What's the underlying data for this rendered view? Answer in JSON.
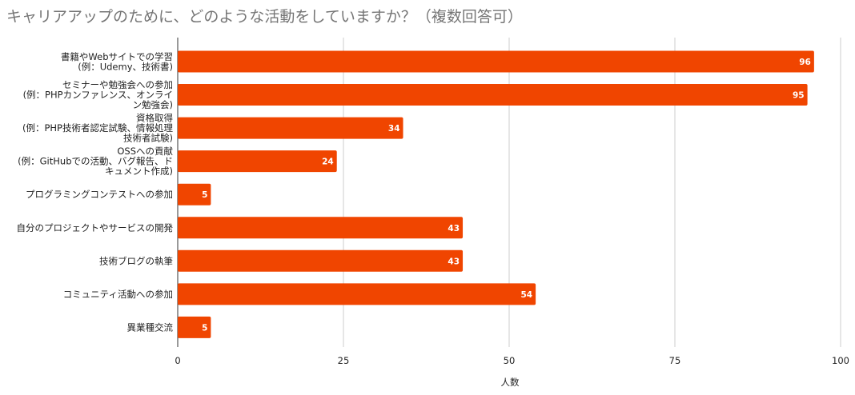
{
  "chart_data": {
    "type": "bar",
    "orientation": "horizontal",
    "title": "キャリアアップのために、どのような活動をしていますか？（複数回答可）",
    "xlabel": "人数",
    "ylabel": "",
    "xlim": [
      0,
      100
    ],
    "ticks": [
      "0",
      "25",
      "50",
      "75",
      "100"
    ],
    "tick_values": [
      0,
      25,
      50,
      75,
      100
    ],
    "grid": true,
    "bar_color": "#f04500",
    "categories": [
      [
        "書籍やWebサイトでの学習",
        "(例：Udemy、技術書)"
      ],
      [
        "セミナーや勉強会への参加",
        "(例：PHPカンファレンス、オンライ",
        "ン勉強会)"
      ],
      [
        "資格取得",
        "(例：PHP技術者認定試験、情報処理",
        "技術者試験)"
      ],
      [
        "OSSへの貢献",
        "(例：GitHubでの活動、バグ報告、ド",
        "キュメント作成)"
      ],
      [
        "プログラミングコンテストへの参加"
      ],
      [
        "自分のプロジェクトやサービスの開発"
      ],
      [
        "技術ブログの執筆"
      ],
      [
        "コミュニティ活動への参加"
      ],
      [
        "異業種交流"
      ]
    ],
    "values": [
      96,
      95,
      34,
      24,
      5,
      43,
      43,
      54,
      5
    ]
  }
}
